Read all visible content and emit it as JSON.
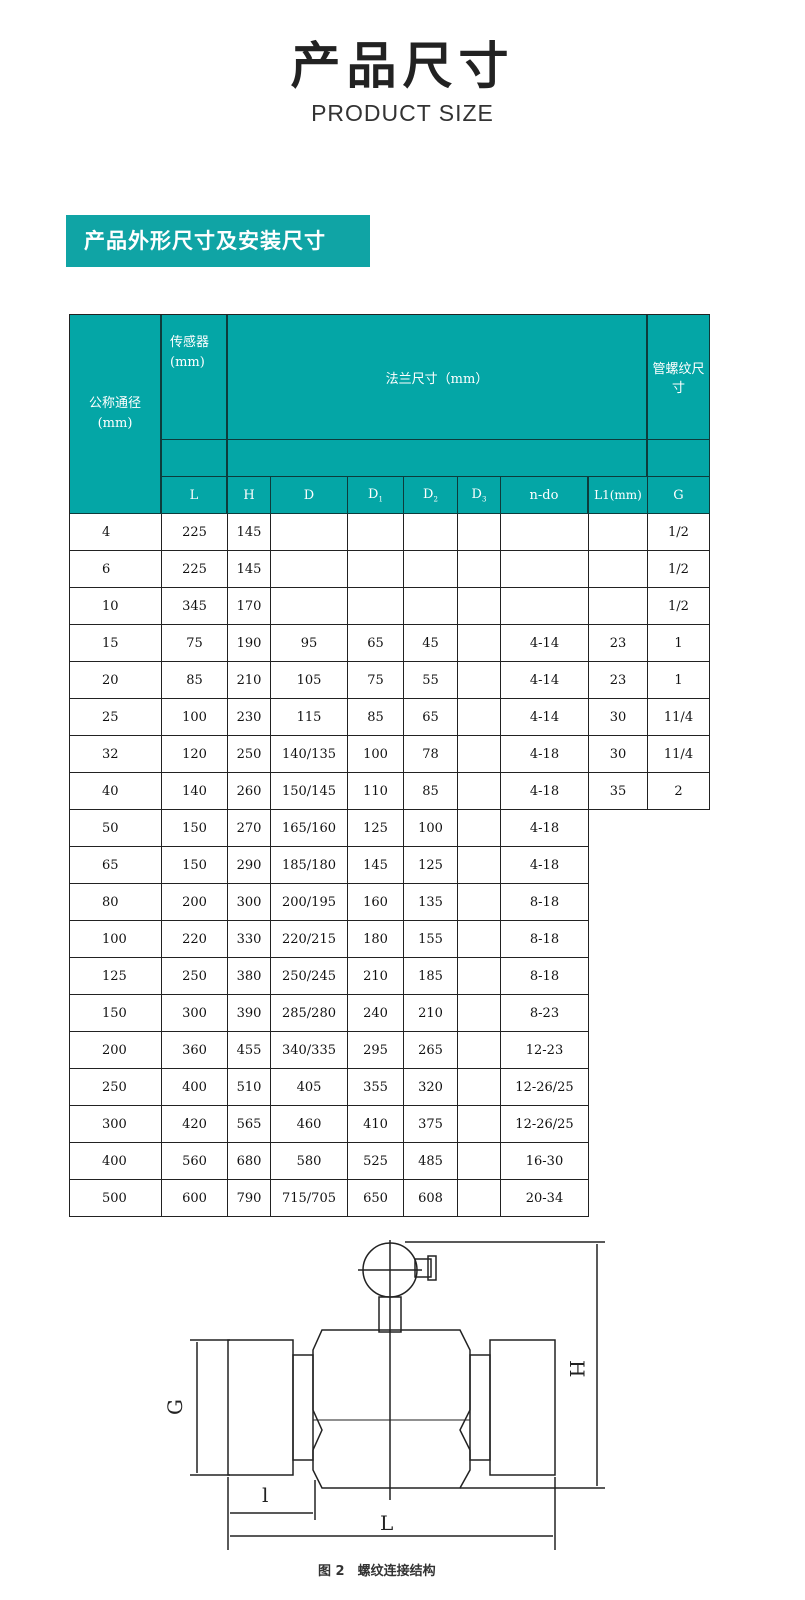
{
  "header": {
    "title": "产品尺寸",
    "subtitle": "PRODUCT SIZE"
  },
  "section": {
    "title": "产品外形尺寸及安装尺寸"
  },
  "table": {
    "group_headers": {
      "nominal": "公称通径",
      "nominal_unit": "(mm)",
      "sensor": "传感器",
      "sensor_unit": "(mm)",
      "flange": "法兰尺寸（mm）",
      "thread": "管螺纹尺寸"
    },
    "columns": [
      "L",
      "H",
      "D",
      "D1",
      "D2",
      "D3",
      "n-do",
      "L1(mm)",
      "G"
    ],
    "rows": [
      [
        "4",
        "225",
        "145",
        "",
        "",
        "",
        "",
        "",
        "",
        "1/2"
      ],
      [
        "6",
        "225",
        "145",
        "",
        "",
        "",
        "",
        "",
        "",
        "1/2"
      ],
      [
        "10",
        "345",
        "170",
        "",
        "",
        "",
        "",
        "",
        "",
        "1/2"
      ],
      [
        "15",
        "75",
        "190",
        "95",
        "65",
        "45",
        "",
        "4-14",
        "23",
        "1"
      ],
      [
        "20",
        "85",
        "210",
        "105",
        "75",
        "55",
        "",
        "4-14",
        "23",
        "1"
      ],
      [
        "25",
        "100",
        "230",
        "115",
        "85",
        "65",
        "",
        "4-14",
        "30",
        "11/4"
      ],
      [
        "32",
        "120",
        "250",
        "140/135",
        "100",
        "78",
        "",
        "4-18",
        "30",
        "11/4"
      ],
      [
        "40",
        "140",
        "260",
        "150/145",
        "110",
        "85",
        "",
        "4-18",
        "35",
        "2"
      ],
      [
        "50",
        "150",
        "270",
        "165/160",
        "125",
        "100",
        "",
        "4-18"
      ],
      [
        "65",
        "150",
        "290",
        "185/180",
        "145",
        "125",
        "",
        "4-18"
      ],
      [
        "80",
        "200",
        "300",
        "200/195",
        "160",
        "135",
        "",
        "8-18"
      ],
      [
        "100",
        "220",
        "330",
        "220/215",
        "180",
        "155",
        "",
        "8-18"
      ],
      [
        "125",
        "250",
        "380",
        "250/245",
        "210",
        "185",
        "",
        "8-18"
      ],
      [
        "150",
        "300",
        "390",
        "285/280",
        "240",
        "210",
        "",
        "8-23"
      ],
      [
        "200",
        "360",
        "455",
        "340/335",
        "295",
        "265",
        "",
        "12-23"
      ],
      [
        "250",
        "400",
        "510",
        "405",
        "355",
        "320",
        "",
        "12-26/25"
      ],
      [
        "300",
        "420",
        "565",
        "460",
        "410",
        "375",
        "",
        "12-26/25"
      ],
      [
        "400",
        "560",
        "680",
        "580",
        "525",
        "485",
        "",
        "16-30"
      ],
      [
        "500",
        "600",
        "790",
        "715/705",
        "650",
        "608",
        "",
        "20-34"
      ]
    ]
  },
  "figure": {
    "labels": {
      "G": "G",
      "l": "l",
      "L": "L",
      "H": "H"
    },
    "caption": "图 2　螺纹连接结构"
  }
}
